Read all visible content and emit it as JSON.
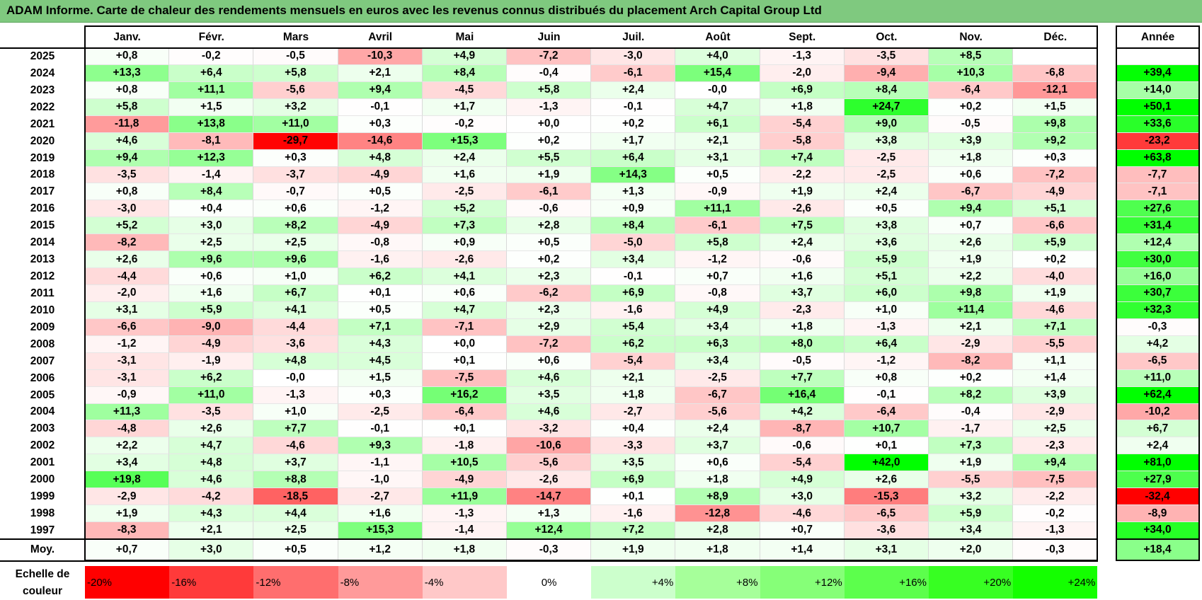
{
  "title": "ADAM Informe. Carte de chaleur des rendements mensuels en euros avec les revenus connus distribués du placement Arch Capital Group Ltd",
  "chart_data": {
    "type": "heatmap",
    "months": [
      "Janv.",
      "Févr.",
      "Mars",
      "Avril",
      "Mai",
      "Juin",
      "Juil.",
      "Août",
      "Sept.",
      "Oct.",
      "Nov.",
      "Déc."
    ],
    "year_header": "Année",
    "rows": [
      {
        "year": "2025",
        "values": [
          "+0,8",
          "-0,2",
          "-0,5",
          "-10,3",
          "+4,9",
          "-7,2",
          "-3,0",
          "+4,0",
          "-1,3",
          "-3,5",
          "+8,5",
          ""
        ],
        "annual": ""
      },
      {
        "year": "2024",
        "values": [
          "+13,3",
          "+6,4",
          "+5,8",
          "+2,1",
          "+8,4",
          "-0,4",
          "-6,1",
          "+15,4",
          "-2,0",
          "-9,4",
          "+10,3",
          "-6,8"
        ],
        "annual": "+39,4"
      },
      {
        "year": "2023",
        "values": [
          "+0,8",
          "+11,1",
          "-5,6",
          "+9,4",
          "-4,5",
          "+5,8",
          "+2,4",
          "-0,0",
          "+6,9",
          "+8,4",
          "-6,4",
          "-12,1"
        ],
        "annual": "+14,0"
      },
      {
        "year": "2022",
        "values": [
          "+5,8",
          "+1,5",
          "+3,2",
          "-0,1",
          "+1,7",
          "-1,3",
          "-0,1",
          "+4,7",
          "+1,8",
          "+24,7",
          "+0,2",
          "+1,5"
        ],
        "annual": "+50,1"
      },
      {
        "year": "2021",
        "values": [
          "-11,8",
          "+13,8",
          "+11,0",
          "+0,3",
          "-0,2",
          "+0,0",
          "+0,2",
          "+6,1",
          "-5,4",
          "+9,0",
          "-0,5",
          "+9,8"
        ],
        "annual": "+33,6"
      },
      {
        "year": "2020",
        "values": [
          "+4,6",
          "-8,1",
          "-29,7",
          "-14,6",
          "+15,3",
          "+0,2",
          "+1,7",
          "+2,1",
          "-5,8",
          "+3,8",
          "+3,9",
          "+9,2"
        ],
        "annual": "-23,2"
      },
      {
        "year": "2019",
        "values": [
          "+9,4",
          "+12,3",
          "+0,3",
          "+4,8",
          "+2,4",
          "+5,5",
          "+6,4",
          "+3,1",
          "+7,4",
          "-2,5",
          "+1,8",
          "+0,3"
        ],
        "annual": "+63,8"
      },
      {
        "year": "2018",
        "values": [
          "-3,5",
          "-1,4",
          "-3,7",
          "-4,9",
          "+1,6",
          "+1,9",
          "+14,3",
          "+0,5",
          "-2,2",
          "-2,5",
          "+0,6",
          "-7,2"
        ],
        "annual": "-7,7"
      },
      {
        "year": "2017",
        "values": [
          "+0,8",
          "+8,4",
          "-0,7",
          "+0,5",
          "-2,5",
          "-6,1",
          "+1,3",
          "-0,9",
          "+1,9",
          "+2,4",
          "-6,7",
          "-4,9"
        ],
        "annual": "-7,1"
      },
      {
        "year": "2016",
        "values": [
          "-3,0",
          "+0,4",
          "+0,6",
          "-1,2",
          "+5,2",
          "-0,6",
          "+0,9",
          "+11,1",
          "-2,6",
          "+0,5",
          "+9,4",
          "+5,1"
        ],
        "annual": "+27,6"
      },
      {
        "year": "2015",
        "values": [
          "+5,2",
          "+3,0",
          "+8,2",
          "-4,9",
          "+7,3",
          "+2,8",
          "+8,4",
          "-6,1",
          "+7,5",
          "+3,8",
          "+0,7",
          "-6,6"
        ],
        "annual": "+31,4"
      },
      {
        "year": "2014",
        "values": [
          "-8,2",
          "+2,5",
          "+2,5",
          "-0,8",
          "+0,9",
          "+0,5",
          "-5,0",
          "+5,8",
          "+2,4",
          "+3,6",
          "+2,6",
          "+5,9"
        ],
        "annual": "+12,4"
      },
      {
        "year": "2013",
        "values": [
          "+2,6",
          "+9,6",
          "+9,6",
          "-1,6",
          "-2,6",
          "+0,2",
          "+3,4",
          "-1,2",
          "-0,6",
          "+5,9",
          "+1,9",
          "+0,2"
        ],
        "annual": "+30,0"
      },
      {
        "year": "2012",
        "values": [
          "-4,4",
          "+0,6",
          "+1,0",
          "+6,2",
          "+4,1",
          "+2,3",
          "-0,1",
          "+0,7",
          "+1,6",
          "+5,1",
          "+2,2",
          "-4,0"
        ],
        "annual": "+16,0"
      },
      {
        "year": "2011",
        "values": [
          "-2,0",
          "+1,6",
          "+6,7",
          "+0,1",
          "+0,6",
          "-6,2",
          "+6,9",
          "-0,8",
          "+3,7",
          "+6,0",
          "+9,8",
          "+1,9"
        ],
        "annual": "+30,7"
      },
      {
        "year": "2010",
        "values": [
          "+3,1",
          "+5,9",
          "+4,1",
          "+0,5",
          "+4,7",
          "+2,3",
          "-1,6",
          "+4,9",
          "-2,3",
          "+1,0",
          "+11,4",
          "-4,6"
        ],
        "annual": "+32,3"
      },
      {
        "year": "2009",
        "values": [
          "-6,6",
          "-9,0",
          "-4,4",
          "+7,1",
          "-7,1",
          "+2,9",
          "+5,4",
          "+3,4",
          "+1,8",
          "-1,3",
          "+2,1",
          "+7,1"
        ],
        "annual": "-0,3"
      },
      {
        "year": "2008",
        "values": [
          "-1,2",
          "-4,9",
          "-3,6",
          "+4,3",
          "+0,0",
          "-7,2",
          "+6,2",
          "+6,3",
          "+8,0",
          "+6,4",
          "-2,9",
          "-5,5"
        ],
        "annual": "+4,2"
      },
      {
        "year": "2007",
        "values": [
          "-3,1",
          "-1,9",
          "+4,8",
          "+4,5",
          "+0,1",
          "+0,6",
          "-5,4",
          "+3,4",
          "-0,5",
          "-1,2",
          "-8,2",
          "+1,1"
        ],
        "annual": "-6,5"
      },
      {
        "year": "2006",
        "values": [
          "-3,1",
          "+6,2",
          "-0,0",
          "+1,5",
          "-7,5",
          "+4,6",
          "+2,1",
          "-2,5",
          "+7,7",
          "+0,8",
          "+0,2",
          "+1,4"
        ],
        "annual": "+11,0"
      },
      {
        "year": "2005",
        "values": [
          "-0,9",
          "+11,0",
          "-1,3",
          "+0,3",
          "+16,2",
          "+3,5",
          "+1,8",
          "-6,7",
          "+16,4",
          "-0,1",
          "+8,2",
          "+3,9"
        ],
        "annual": "+62,4"
      },
      {
        "year": "2004",
        "values": [
          "+11,3",
          "-3,5",
          "+1,0",
          "-2,5",
          "-6,4",
          "+4,6",
          "-2,7",
          "-5,6",
          "+4,2",
          "-6,4",
          "-0,4",
          "-2,9"
        ],
        "annual": "-10,2"
      },
      {
        "year": "2003",
        "values": [
          "-4,8",
          "+2,6",
          "+7,7",
          "-0,1",
          "+0,1",
          "-3,2",
          "+0,4",
          "+2,4",
          "-8,7",
          "+10,7",
          "-1,7",
          "+2,5"
        ],
        "annual": "+6,7"
      },
      {
        "year": "2002",
        "values": [
          "+2,2",
          "+4,7",
          "-4,6",
          "+9,3",
          "-1,8",
          "-10,6",
          "-3,3",
          "+3,7",
          "-0,6",
          "+0,1",
          "+7,3",
          "-2,3"
        ],
        "annual": "+2,4"
      },
      {
        "year": "2001",
        "values": [
          "+3,4",
          "+4,8",
          "+3,7",
          "-1,1",
          "+10,5",
          "-5,6",
          "+3,5",
          "+0,6",
          "-5,4",
          "+42,0",
          "+1,9",
          "+9,4"
        ],
        "annual": "+81,0"
      },
      {
        "year": "2000",
        "values": [
          "+19,8",
          "+4,6",
          "+8,8",
          "-1,0",
          "-4,9",
          "-2,6",
          "+6,9",
          "+1,8",
          "+4,9",
          "+2,6",
          "-5,5",
          "-7,5"
        ],
        "annual": "+27,9"
      },
      {
        "year": "1999",
        "values": [
          "-2,9",
          "-4,2",
          "-18,5",
          "-2,7",
          "+11,9",
          "-14,7",
          "+0,1",
          "+8,9",
          "+3,0",
          "-15,3",
          "+3,2",
          "-2,2"
        ],
        "annual": "-32,4"
      },
      {
        "year": "1998",
        "values": [
          "+1,9",
          "+4,3",
          "+4,4",
          "+1,6",
          "-1,3",
          "+1,3",
          "-1,6",
          "-12,8",
          "-4,6",
          "-6,5",
          "+5,9",
          "-0,2"
        ],
        "annual": "-8,9"
      },
      {
        "year": "1997",
        "values": [
          "-8,3",
          "+2,1",
          "+2,5",
          "+15,3",
          "-1,4",
          "+12,4",
          "+7,2",
          "+2,8",
          "+0,7",
          "-3,6",
          "+3,4",
          "-1,3"
        ],
        "annual": "+34,0"
      }
    ],
    "average": {
      "label": "Moy.",
      "values": [
        "+0,7",
        "+3,0",
        "+0,5",
        "+1,2",
        "+1,8",
        "-0,3",
        "+1,9",
        "+1,8",
        "+1,4",
        "+3,1",
        "+2,0",
        "-0,3"
      ],
      "annual": "+18,4"
    },
    "scale": {
      "label": "Echelle de couleur",
      "steps": [
        "-20%",
        "-16%",
        "-12%",
        "-8%",
        "-4%",
        "0%",
        "+4%",
        "+8%",
        "+12%",
        "+16%",
        "+20%",
        "+24%"
      ],
      "colors": [
        "#ff0000",
        "#ff3a3a",
        "#ff6e6e",
        "#ff9a9a",
        "#ffc8c8",
        "#ffffff",
        "#ccffcc",
        "#a6ff9a",
        "#86ff78",
        "#5cff4c",
        "#37ff22",
        "#14ff00"
      ]
    }
  }
}
